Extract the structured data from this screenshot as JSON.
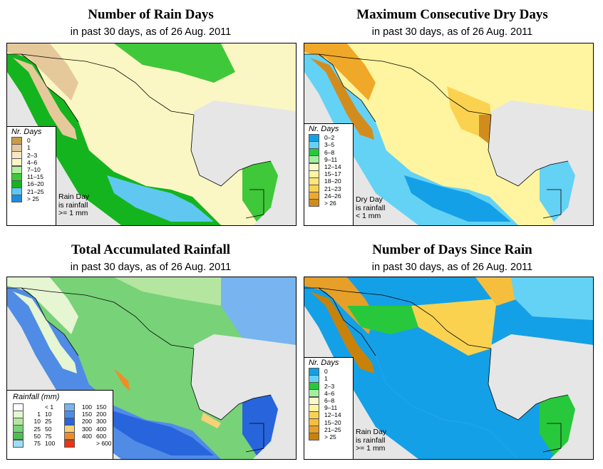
{
  "panels": [
    {
      "title": "Number of Rain Days",
      "subtitle": "in past 30 days, as of  26 Aug. 2011",
      "legend_title": "Nr. Days",
      "legend": [
        {
          "label": "0",
          "color": "#c89b4a"
        },
        {
          "label": "1",
          "color": "#e6c99a"
        },
        {
          "label": "2–3",
          "color": "#f7e7c4"
        },
        {
          "label": "4–6",
          "color": "#fbf7c4"
        },
        {
          "label": "7–10",
          "color": "#b4f0a0"
        },
        {
          "label": "11–15",
          "color": "#3fc83a"
        },
        {
          "label": "16–20",
          "color": "#14b41e"
        },
        {
          "label": "21–25",
          "color": "#60c8f0"
        },
        {
          "label": "> 25",
          "color": "#1e8cdc"
        }
      ],
      "note": [
        "Rain Day",
        "is rainfall",
        ">= 1 mm"
      ]
    },
    {
      "title": "Maximum Consecutive Dry Days",
      "subtitle": "in past 30 days, as of  26 Aug. 2011",
      "legend_title": "Nr. Days",
      "legend": [
        {
          "label": "0–2",
          "color": "#14a0e6"
        },
        {
          "label": "3–5",
          "color": "#64d2f5"
        },
        {
          "label": "6–8",
          "color": "#28c83c"
        },
        {
          "label": "9–11",
          "color": "#a0f0a0"
        },
        {
          "label": "12–14",
          "color": "#fafac8"
        },
        {
          "label": "15–17",
          "color": "#fff5a0"
        },
        {
          "label": "18–20",
          "color": "#ffe678"
        },
        {
          "label": "21–23",
          "color": "#fad250"
        },
        {
          "label": "24–26",
          "color": "#f0a828"
        },
        {
          "label": "> 26",
          "color": "#d28c1e"
        }
      ],
      "note": [
        "Dry Day",
        "is rainfall",
        "< 1 mm"
      ]
    },
    {
      "title": "Total Accumulated Rainfall",
      "subtitle": "in past 30 days, as of  26 Aug. 2011",
      "legend_title": "Rainfall (mm)",
      "legend": [
        {
          "lo": "",
          "hi": "< 1",
          "color": "#ffffff"
        },
        {
          "lo": "100",
          "hi": "150",
          "color": "#78b4f0"
        },
        {
          "lo": "1",
          "hi": "10",
          "color": "#e6f5d2"
        },
        {
          "lo": "150",
          "hi": "200",
          "color": "#508ce6"
        },
        {
          "lo": "10",
          "hi": "25",
          "color": "#b4e6a0"
        },
        {
          "lo": "200",
          "hi": "300",
          "color": "#2864dc"
        },
        {
          "lo": "25",
          "hi": "50",
          "color": "#78d278"
        },
        {
          "lo": "300",
          "hi": "400",
          "color": "#f5d278"
        },
        {
          "lo": "50",
          "hi": "75",
          "color": "#50be50"
        },
        {
          "lo": "400",
          "hi": "600",
          "color": "#f08c28"
        },
        {
          "lo": "75",
          "hi": "100",
          "color": "#a0dcf5"
        },
        {
          "lo": "",
          "hi": "> 600",
          "color": "#f03214"
        }
      ]
    },
    {
      "title": "Number of Days Since Rain",
      "subtitle": "in past 30 days, as of  26 Aug. 2011",
      "legend_title": "Nr. Days",
      "legend": [
        {
          "label": "0",
          "color": "#14a0e6"
        },
        {
          "label": "1",
          "color": "#64d2f5"
        },
        {
          "label": "2–3",
          "color": "#28c83c"
        },
        {
          "label": "4–6",
          "color": "#a0f0a0"
        },
        {
          "label": "6–8",
          "color": "#fafac8"
        },
        {
          "label": "9–11",
          "color": "#fff5a0"
        },
        {
          "label": "12–14",
          "color": "#fad250"
        },
        {
          "label": "15–20",
          "color": "#f5be3c"
        },
        {
          "label": "21–25",
          "color": "#e6a028"
        },
        {
          "label": "> 25",
          "color": "#c8820a"
        }
      ],
      "note": [
        "Rain Day",
        "is rainfall",
        ">= 1 mm"
      ]
    }
  ]
}
